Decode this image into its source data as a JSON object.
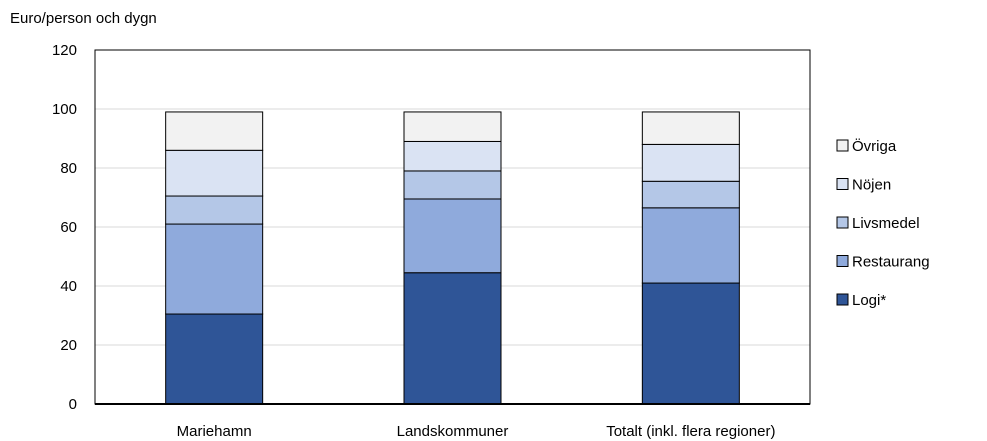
{
  "chart_data": {
    "type": "bar",
    "stacked": true,
    "title": "",
    "xlabel": "",
    "ylabel": "Euro/person och dygn",
    "ylim": [
      0,
      120
    ],
    "yticks": [
      "0",
      "20",
      "40",
      "60",
      "80",
      "100",
      "120"
    ],
    "grid": true,
    "legend_position": "right",
    "categories": [
      "Mariehamn",
      "Landskommuner",
      "Totalt (inkl. flera regioner)"
    ],
    "series": [
      {
        "name": "Logi*",
        "color": "#2F5597",
        "values": [
          30.5,
          44.5,
          41.0
        ]
      },
      {
        "name": "Restaurang",
        "color": "#8FAADC",
        "values": [
          30.5,
          25.0,
          25.5
        ]
      },
      {
        "name": "Livsmedel",
        "color": "#B4C7E7",
        "values": [
          9.5,
          9.5,
          9.0
        ]
      },
      {
        "name": "Nöjen",
        "color": "#DAE3F3",
        "values": [
          15.5,
          10.0,
          12.5
        ]
      },
      {
        "name": "Övriga",
        "color": "#F2F2F2",
        "values": [
          13.0,
          10.0,
          11.0
        ]
      }
    ]
  }
}
